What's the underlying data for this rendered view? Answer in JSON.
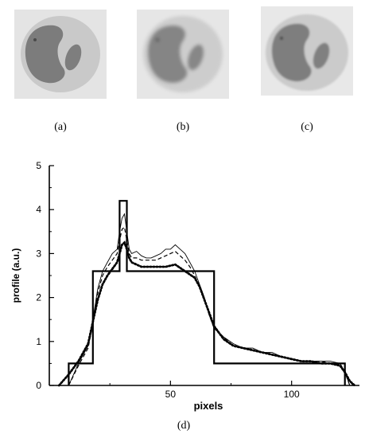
{
  "panels": [
    {
      "caption": "(a)",
      "image": "phantom-sharp"
    },
    {
      "caption": "(b)",
      "image": "phantom-blurred"
    },
    {
      "caption": "(c)",
      "image": "phantom-reconstructed"
    }
  ],
  "chart_caption": "(d)",
  "colors": {
    "line": "#000000",
    "phantom_bg": "#e6e6e6",
    "phantom_body": "#c4c4c4",
    "phantom_lesion": "#7e7e7e"
  },
  "chart_data": {
    "type": "line",
    "xlabel": "pixels",
    "ylabel": "profile (a.u.)",
    "xlim": [
      0,
      128
    ],
    "ylim": [
      0,
      5
    ],
    "xticks": [
      50,
      100
    ],
    "yticks": [
      0,
      1,
      2,
      3,
      4,
      5
    ],
    "grid": false,
    "legend": "none",
    "series": [
      {
        "style": "solid-thick",
        "x": [
          8,
          8,
          18,
          18,
          29,
          29,
          32,
          32,
          68,
          68,
          122,
          122
        ],
        "y": [
          0,
          0.5,
          0.5,
          2.6,
          2.6,
          4.2,
          4.2,
          2.6,
          2.6,
          0.5,
          0.5,
          0
        ]
      },
      {
        "style": "solid-thin",
        "x": [
          8,
          12,
          16,
          18,
          20,
          22,
          24,
          26,
          28,
          29,
          30,
          31,
          32,
          33,
          34,
          36,
          38,
          40,
          42,
          44,
          46,
          48,
          50,
          52,
          54,
          56,
          58,
          60,
          62,
          64,
          66,
          68,
          70,
          72,
          76,
          80,
          84,
          88,
          92,
          96,
          100,
          104,
          108,
          112,
          116,
          120,
          122,
          124
        ],
        "y": [
          0,
          0.5,
          0.9,
          1.5,
          2.2,
          2.6,
          2.8,
          3.0,
          3.1,
          3.5,
          3.8,
          3.9,
          3.5,
          3.1,
          3.0,
          3.05,
          2.95,
          2.9,
          2.9,
          2.95,
          3.0,
          3.1,
          3.1,
          3.2,
          3.1,
          3.0,
          2.8,
          2.6,
          2.3,
          2.0,
          1.6,
          1.3,
          1.2,
          1.1,
          0.95,
          0.85,
          0.85,
          0.75,
          0.75,
          0.65,
          0.6,
          0.55,
          0.55,
          0.55,
          0.55,
          0.5,
          0.3,
          0
        ]
      },
      {
        "style": "dashed",
        "x": [
          8,
          12,
          16,
          18,
          20,
          22,
          24,
          26,
          28,
          29,
          30,
          31,
          32,
          33,
          34,
          36,
          38,
          40,
          42,
          44,
          46,
          48,
          50,
          52,
          54,
          56,
          58,
          60,
          62,
          64,
          66,
          68,
          70,
          72,
          76,
          80,
          84,
          88,
          92,
          96,
          100,
          104,
          108,
          112,
          116,
          120,
          122,
          124
        ],
        "y": [
          0,
          0.45,
          0.85,
          1.4,
          2.1,
          2.5,
          2.7,
          2.85,
          3.0,
          3.3,
          3.55,
          3.6,
          3.3,
          3.0,
          2.9,
          2.9,
          2.85,
          2.85,
          2.85,
          2.85,
          2.9,
          2.95,
          3.0,
          3.05,
          2.95,
          2.85,
          2.7,
          2.5,
          2.25,
          1.95,
          1.6,
          1.3,
          1.2,
          1.1,
          0.9,
          0.85,
          0.8,
          0.75,
          0.7,
          0.65,
          0.6,
          0.55,
          0.55,
          0.55,
          0.5,
          0.5,
          0.3,
          0
        ]
      },
      {
        "style": "dotted-thick",
        "x": [
          4,
          8,
          12,
          16,
          18,
          20,
          22,
          24,
          26,
          28,
          29,
          30,
          31,
          32,
          33,
          34,
          36,
          38,
          40,
          44,
          48,
          52,
          56,
          60,
          62,
          64,
          66,
          68,
          70,
          72,
          76,
          80,
          84,
          88,
          92,
          96,
          100,
          104,
          108,
          112,
          116,
          120,
          122,
          124,
          126
        ],
        "y": [
          0,
          0.25,
          0.55,
          0.95,
          1.45,
          1.95,
          2.3,
          2.5,
          2.65,
          2.8,
          3.0,
          3.2,
          3.25,
          3.1,
          2.9,
          2.8,
          2.75,
          2.7,
          2.7,
          2.7,
          2.7,
          2.75,
          2.6,
          2.45,
          2.25,
          1.95,
          1.65,
          1.35,
          1.2,
          1.05,
          0.9,
          0.85,
          0.8,
          0.75,
          0.7,
          0.65,
          0.6,
          0.55,
          0.55,
          0.5,
          0.5,
          0.45,
          0.3,
          0.1,
          0
        ]
      }
    ]
  }
}
